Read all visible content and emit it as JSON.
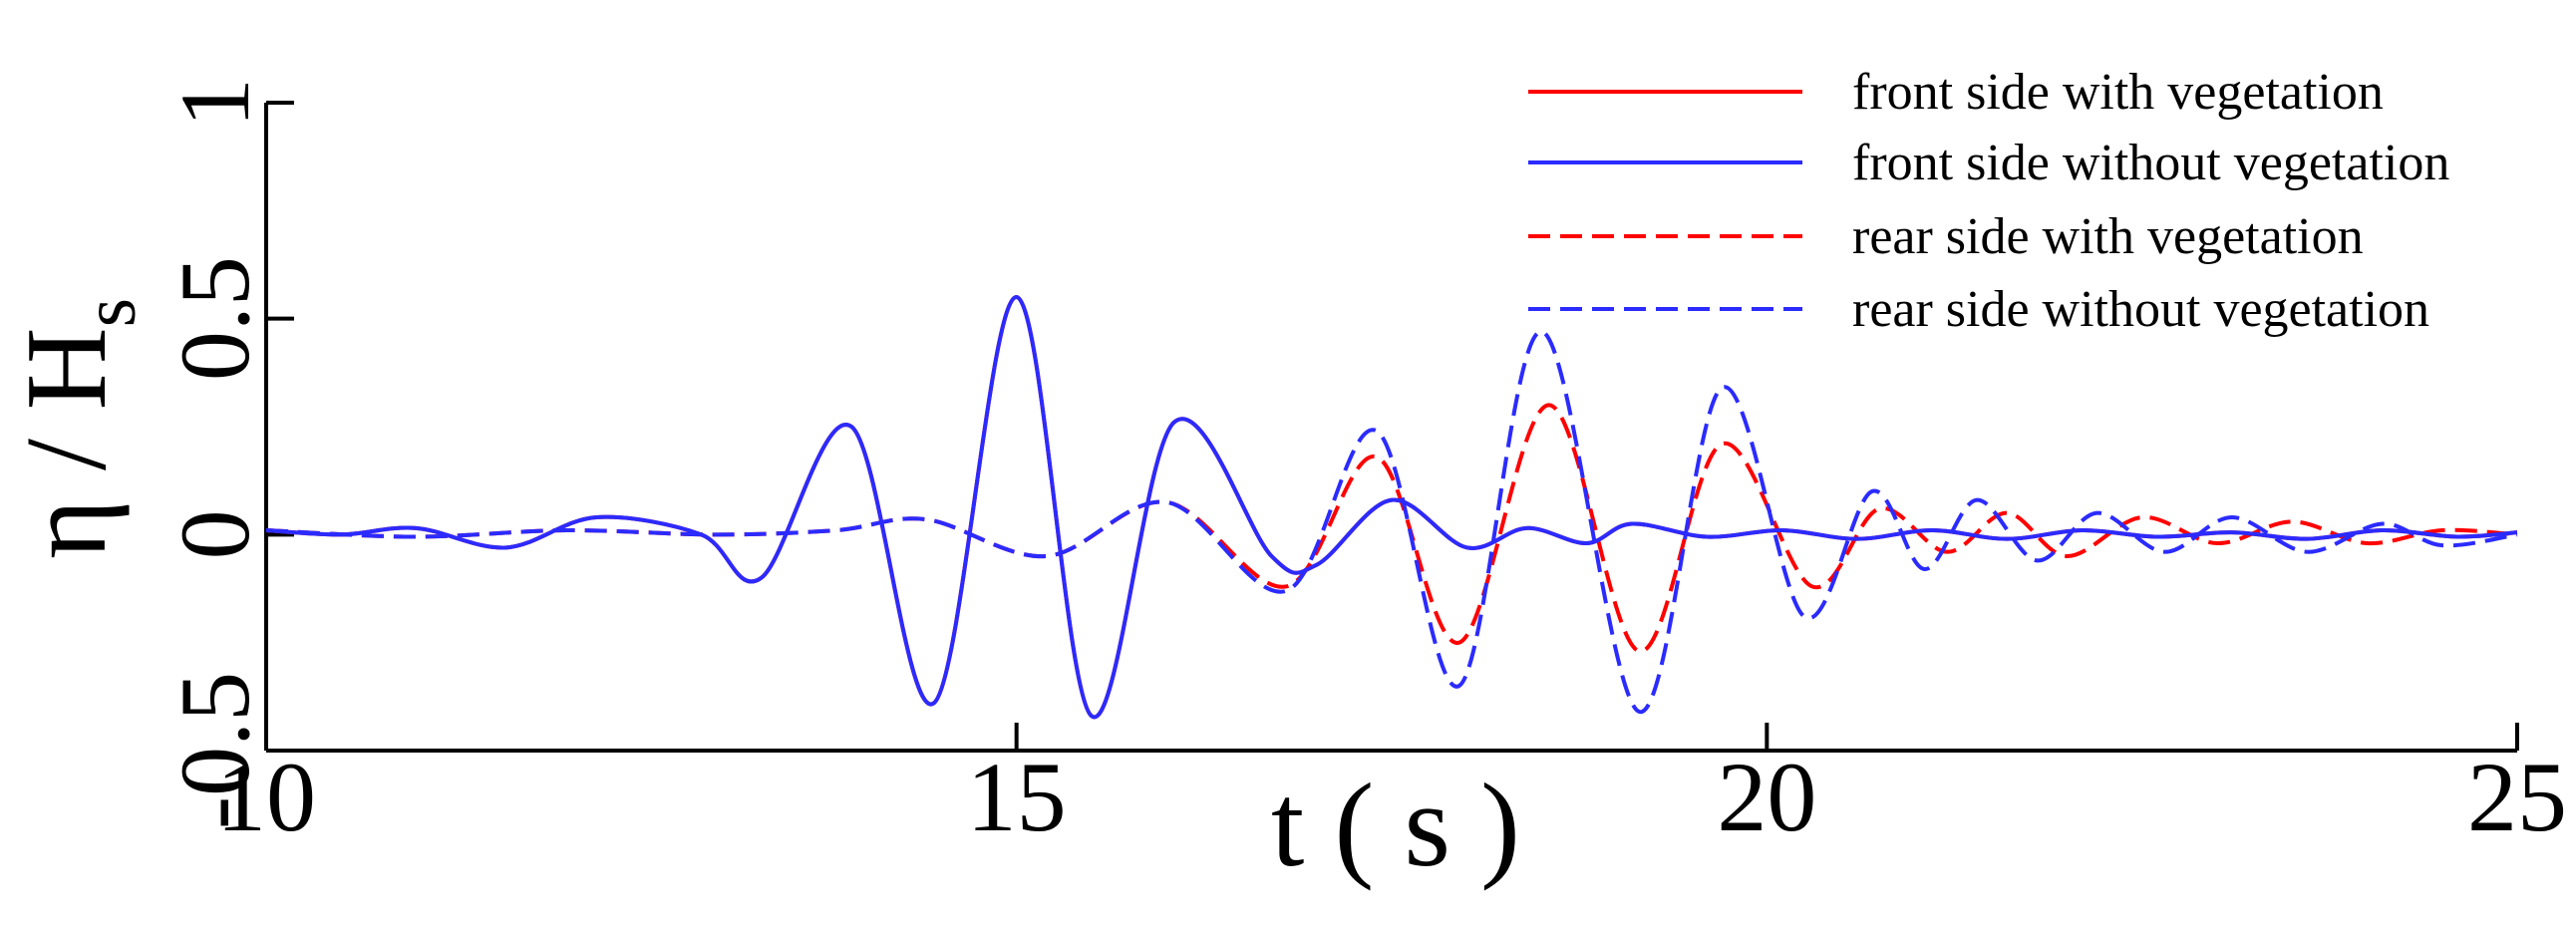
{
  "chart_data": {
    "type": "line",
    "xlabel": "t ( s )",
    "ylabel": "η / H",
    "ylabel_subscript": "s",
    "xlim": [
      10,
      25
    ],
    "xticks": [
      10,
      15,
      20,
      25
    ],
    "ylim": [
      -0.5,
      1
    ],
    "yticks": [
      -0.5,
      0,
      0.5,
      1
    ],
    "legend": "upper right",
    "series": [
      {
        "name": "front side with vegetation",
        "color": "#ff0000",
        "dash": false,
        "x": [
          10,
          10.5,
          11,
          11.6,
          12.2,
          12.9,
          13.3,
          13.9,
          14.45,
          15,
          15.5,
          16.05,
          16.7,
          17,
          17.5,
          18,
          18.4,
          18.8,
          19.1,
          19.6,
          20.1,
          20.6,
          21.1,
          21.6,
          22.1,
          22.6,
          23.1,
          23.6,
          24.1,
          24.6,
          25
        ],
        "values": [
          0.01,
          0,
          0.015,
          -0.03,
          0.04,
          0,
          -0.1,
          0.25,
          -0.39,
          0.55,
          -0.42,
          0.26,
          -0.05,
          -0.07,
          0.08,
          -0.03,
          0.015,
          -0.02,
          0.025,
          -0.005,
          0.01,
          -0.01,
          0.01,
          -0.01,
          0.01,
          -0.005,
          0.005,
          -0.01,
          0.01,
          -0.005,
          0.005
        ]
      },
      {
        "name": "front side without vegetation",
        "color": "#2b2bff",
        "dash": false,
        "x": [
          10,
          10.5,
          11,
          11.6,
          12.2,
          12.9,
          13.3,
          13.9,
          14.45,
          15,
          15.5,
          16.05,
          16.7,
          17,
          17.5,
          18,
          18.4,
          18.8,
          19.1,
          19.6,
          20.1,
          20.6,
          21.1,
          21.6,
          22.1,
          22.6,
          23.1,
          23.6,
          24.1,
          24.6,
          25
        ],
        "values": [
          0.01,
          0,
          0.015,
          -0.03,
          0.04,
          0,
          -0.1,
          0.25,
          -0.39,
          0.55,
          -0.42,
          0.26,
          -0.05,
          -0.07,
          0.08,
          -0.03,
          0.015,
          -0.02,
          0.025,
          -0.005,
          0.01,
          -0.01,
          0.01,
          -0.01,
          0.01,
          -0.005,
          0.005,
          -0.01,
          0.01,
          -0.005,
          0.005
        ]
      },
      {
        "name": "rear side with vegetation",
        "color": "#ff0000",
        "dash": true,
        "x": [
          10,
          11,
          12,
          13,
          13.8,
          14.4,
          15.2,
          16,
          16.8,
          17.4,
          17.95,
          18.55,
          19.15,
          19.7,
          20.3,
          20.75,
          21.2,
          21.6,
          22,
          22.5,
          23,
          23.5,
          24,
          24.5,
          25
        ],
        "values": [
          0.01,
          -0.005,
          0.01,
          0,
          0.01,
          0.035,
          -0.05,
          0.075,
          -0.12,
          0.18,
          -0.25,
          0.3,
          -0.27,
          0.21,
          -0.12,
          0.06,
          -0.04,
          0.05,
          -0.05,
          0.04,
          -0.02,
          0.03,
          -0.02,
          0.01,
          0
        ]
      },
      {
        "name": "rear side without vegetation",
        "color": "#2b2bff",
        "dash": true,
        "x": [
          10,
          11,
          12,
          13,
          13.8,
          14.4,
          15.2,
          16,
          16.8,
          17.4,
          17.95,
          18.5,
          19.15,
          19.7,
          20.25,
          20.7,
          21.05,
          21.4,
          21.8,
          22.2,
          22.65,
          23.1,
          23.6,
          24.1,
          24.5,
          25
        ],
        "values": [
          0.01,
          -0.005,
          0.01,
          0,
          0.01,
          0.035,
          -0.05,
          0.075,
          -0.13,
          0.24,
          -0.35,
          0.47,
          -0.41,
          0.34,
          -0.19,
          0.1,
          -0.08,
          0.08,
          -0.06,
          0.05,
          -0.04,
          0.04,
          -0.04,
          0.025,
          -0.025,
          0
        ]
      }
    ]
  }
}
